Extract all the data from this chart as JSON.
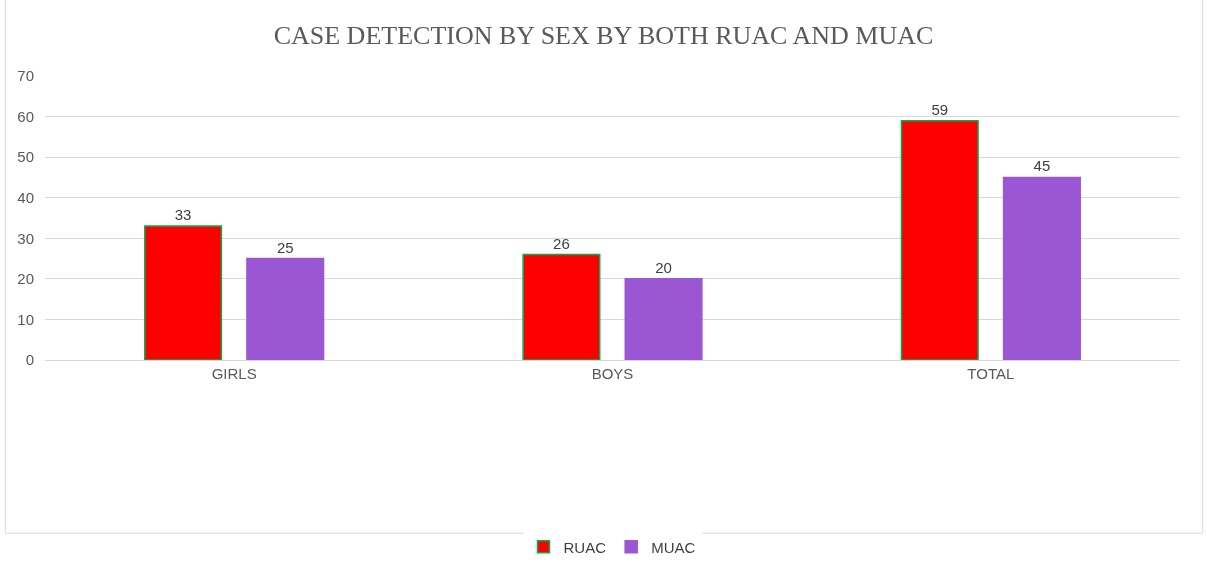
{
  "chart_data": {
    "type": "bar",
    "title": "CASE DETECTION BY SEX BY BOTH RUAC AND MUAC",
    "categories": [
      "GIRLS",
      "BOYS",
      "TOTAL"
    ],
    "series": [
      {
        "name": "RUAC",
        "color": "#ff0000",
        "values": [
          33,
          26,
          59
        ]
      },
      {
        "name": "MUAC",
        "color": "#9b57d3",
        "values": [
          25,
          20,
          45
        ]
      }
    ],
    "ylim": [
      0,
      70
    ],
    "yticks": [
      0,
      10,
      20,
      30,
      40,
      50,
      60,
      70
    ],
    "grid": "y",
    "legend": "bottom",
    "data_labels": true
  }
}
